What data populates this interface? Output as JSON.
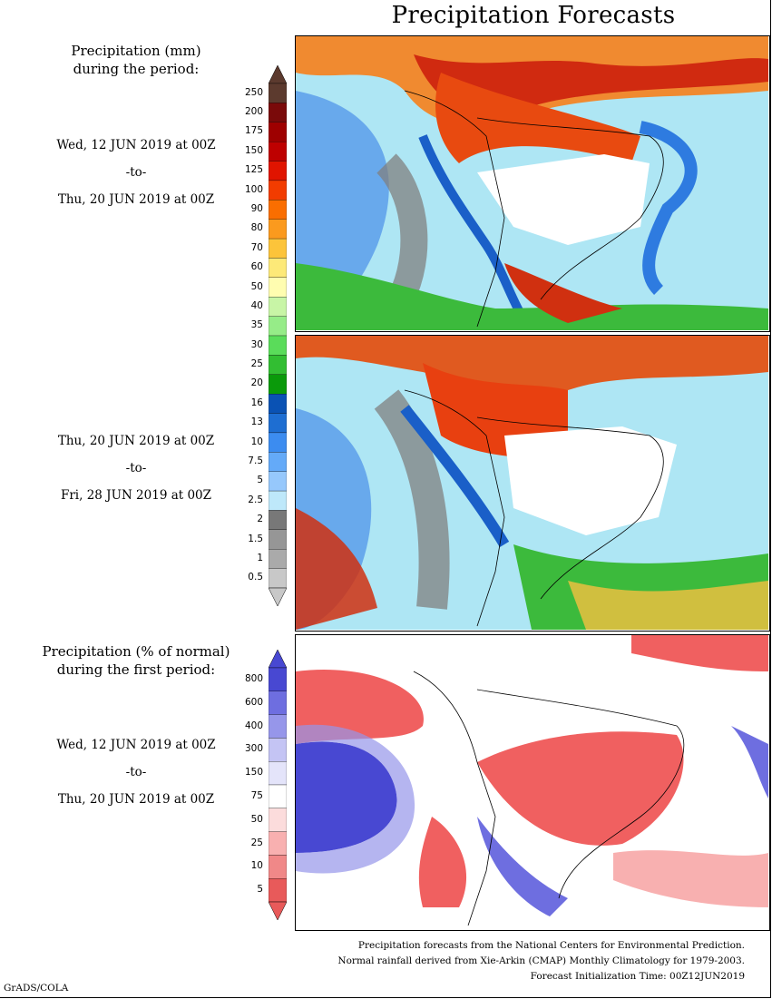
{
  "title": "Precipitation Forecasts",
  "precip_header": [
    "Precipitation (mm)",
    "during the period:"
  ],
  "period1": {
    "start": "Wed, 12 JUN 2019 at 00Z",
    "sep": "-to-",
    "end": "Thu, 20 JUN 2019 at 00Z"
  },
  "period2": {
    "start": "Thu, 20 JUN 2019 at 00Z",
    "sep": "-to-",
    "end": "Fri, 28 JUN 2019 at 00Z"
  },
  "pct_header": [
    "Precipitation (% of normal)",
    "during the first period:"
  ],
  "period3": {
    "start": "Wed, 12 JUN 2019 at 00Z",
    "sep": "-to-",
    "end": "Thu, 20 JUN 2019 at 00Z"
  },
  "precip_scale": {
    "labels": [
      "250",
      "200",
      "175",
      "150",
      "125",
      "100",
      "90",
      "80",
      "70",
      "60",
      "50",
      "40",
      "35",
      "30",
      "25",
      "20",
      "16",
      "13",
      "10",
      "7.5",
      "5",
      "2.5",
      "2",
      "1.5",
      "1",
      "0.5"
    ],
    "colors": [
      "#5c3a2e",
      "#7a0a0a",
      "#9e0000",
      "#be0000",
      "#e01400",
      "#f23c00",
      "#fa6e00",
      "#fb9a1e",
      "#fcc43a",
      "#fde978",
      "#fffdb0",
      "#c8f5a6",
      "#96ec88",
      "#5adc5a",
      "#32be32",
      "#0a9a0a",
      "#0a52b4",
      "#1e6ed2",
      "#3c8cf0",
      "#64aaf8",
      "#96c8fc",
      "#bee8fa",
      "#787878",
      "#969696",
      "#aaaaaa",
      "#c8c8c8"
    ]
  },
  "pct_scale": {
    "labels": [
      "800",
      "600",
      "400",
      "300",
      "150",
      "75",
      "50",
      "25",
      "10",
      "5"
    ],
    "colors": [
      "#4848d2",
      "#6e6ee0",
      "#9696ea",
      "#c4c4f4",
      "#e4e4fa",
      "#ffffff",
      "#fcdcdc",
      "#f8b0b0",
      "#f08888",
      "#e85a5a"
    ]
  },
  "footer": [
    "Precipitation forecasts from the National Centers for Environmental Prediction.",
    "Normal rainfall derived from Xie-Arkin (CMAP) Monthly Climatology for 1979-2003.",
    "Forecast Initialization Time: 00Z12JUN2019"
  ],
  "credit": "GrADS/COLA"
}
